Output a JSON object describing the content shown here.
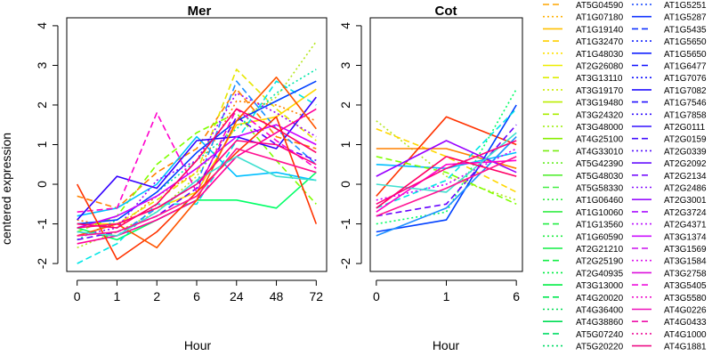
{
  "chart_data": [
    {
      "type": "line",
      "title": "Mer",
      "xlabel": "Hour",
      "ylabel": "centered expression",
      "categories": [
        "0",
        "1",
        "2",
        "6",
        "24",
        "48",
        "72"
      ],
      "ylim": [
        -2.2,
        4.2
      ],
      "yticks": [
        -2,
        -1,
        0,
        1,
        2,
        3,
        4
      ],
      "grid": false,
      "series": [
        {
          "values": [
            -0.3,
            -0.6,
            0.3,
            0.9,
            2.4,
            1.2,
            0.9
          ],
          "color": "#ff8000",
          "dash": "dash"
        },
        {
          "values": [
            -0.9,
            -1.1,
            -0.3,
            0.3,
            2.1,
            2.0,
            1.6
          ],
          "color": "#ff8000",
          "dash": "dot"
        },
        {
          "values": [
            -1.0,
            -1.0,
            -0.6,
            -0.2,
            1.5,
            1.7,
            2.4
          ],
          "color": "#ffd700",
          "dash": "solid"
        },
        {
          "values": [
            -1.3,
            -1.0,
            -0.4,
            0.3,
            2.9,
            1.9,
            1.1
          ],
          "color": "#e6e600",
          "dash": "dash"
        },
        {
          "values": [
            -1.6,
            -1.2,
            -0.7,
            0.2,
            1.6,
            2.2,
            3.6
          ],
          "color": "#b5e61d",
          "dash": "dot"
        },
        {
          "values": [
            -1.2,
            -0.8,
            0.5,
            1.3,
            1.8,
            0.6,
            -0.5
          ],
          "color": "#7fff00",
          "dash": "dash"
        },
        {
          "values": [
            -1.1,
            -1.4,
            -0.9,
            -0.4,
            -0.4,
            -0.6,
            0.3
          ],
          "color": "#00ff66",
          "dash": "solid"
        },
        {
          "values": [
            -1.4,
            -0.9,
            -0.2,
            0.6,
            1.4,
            2.3,
            2.9
          ],
          "color": "#00e6a8",
          "dash": "dot"
        },
        {
          "values": [
            -2.0,
            -1.5,
            -0.5,
            -0.5,
            1.1,
            2.6,
            2.0
          ],
          "color": "#00e6e6",
          "dash": "dash"
        },
        {
          "values": [
            -0.8,
            -0.6,
            0.0,
            1.2,
            0.2,
            0.3,
            0.1
          ],
          "color": "#00bfff",
          "dash": "solid"
        },
        {
          "values": [
            -1.2,
            -1.3,
            -0.6,
            0.0,
            2.6,
            1.4,
            0.5
          ],
          "color": "#1e90ff",
          "dash": "dash"
        },
        {
          "values": [
            -1.0,
            -0.9,
            -0.2,
            0.8,
            1.6,
            2.1,
            2.6
          ],
          "color": "#0040ff",
          "dash": "solid"
        },
        {
          "values": [
            -0.9,
            0.2,
            -0.1,
            1.1,
            1.2,
            0.9,
            2.2
          ],
          "color": "#3300ff",
          "dash": "solid"
        },
        {
          "values": [
            -1.4,
            -1.2,
            -0.8,
            -0.1,
            1.7,
            1.0,
            0.6
          ],
          "color": "#6600ff",
          "dash": "dash"
        },
        {
          "values": [
            -1.3,
            -1.1,
            0.1,
            0.6,
            2.3,
            1.8,
            1.2
          ],
          "color": "#9900ff",
          "dash": "dot"
        },
        {
          "values": [
            -1.1,
            -0.8,
            -0.3,
            0.4,
            1.2,
            1.5,
            1.0
          ],
          "color": "#cc00ff",
          "dash": "solid"
        },
        {
          "values": [
            -0.7,
            -0.6,
            1.8,
            -0.2,
            1.9,
            1.1,
            0.4
          ],
          "color": "#ff00cc",
          "dash": "dash"
        },
        {
          "values": [
            -1.5,
            -1.3,
            -0.9,
            -0.4,
            0.7,
            1.3,
            1.9
          ],
          "color": "#ff0099",
          "dash": "solid"
        },
        {
          "values": [
            0.0,
            -1.9,
            -1.2,
            -0.2,
            0.8,
            1.7,
            -1.0
          ],
          "color": "#ff3300",
          "dash": "solid"
        },
        {
          "values": [
            -1.3,
            -1.0,
            -1.6,
            -0.4,
            1.6,
            2.7,
            1.4
          ],
          "color": "#ff5500",
          "dash": "solid"
        },
        {
          "values": [
            -1.2,
            -1.3,
            -0.7,
            0.1,
            0.7,
            0.2,
            0.1
          ],
          "color": "#40e0d0",
          "dash": "solid"
        },
        {
          "values": [
            -1.0,
            -1.1,
            -0.5,
            0.6,
            1.9,
            1.4,
            0.8
          ],
          "color": "#ff0066",
          "dash": "solid"
        },
        {
          "values": [
            -1.3,
            -1.2,
            -0.8,
            -0.3,
            0.9,
            0.6,
            0.3
          ],
          "color": "#ff1493",
          "dash": "solid"
        },
        {
          "values": [
            -1.1,
            -1.0,
            -0.6,
            0.0,
            1.1,
            1.0,
            0.5
          ],
          "color": "#ff0080",
          "dash": "solid"
        }
      ]
    },
    {
      "type": "line",
      "title": "Cot",
      "xlabel": "Hour",
      "ylabel": "",
      "categories": [
        "0",
        "1",
        "6"
      ],
      "ylim": [
        -2.2,
        4.2
      ],
      "yticks": [
        -2,
        -1,
        0,
        1,
        2,
        3,
        4
      ],
      "grid": false,
      "series": [
        {
          "values": [
            1.6,
            0.2,
            -0.4
          ],
          "color": "#b5e61d",
          "dash": "dot"
        },
        {
          "values": [
            1.4,
            0.7,
            -0.2
          ],
          "color": "#ffd700",
          "dash": "dash"
        },
        {
          "values": [
            0.9,
            0.9,
            0.4
          ],
          "color": "#ff8000",
          "dash": "solid"
        },
        {
          "values": [
            -0.3,
            1.7,
            1.0
          ],
          "color": "#ff3300",
          "dash": "solid"
        },
        {
          "values": [
            -1.2,
            -0.9,
            2.0
          ],
          "color": "#0040ff",
          "dash": "solid"
        },
        {
          "values": [
            -1.0,
            -0.7,
            2.4
          ],
          "color": "#00ff66",
          "dash": "dot"
        },
        {
          "values": [
            -0.6,
            0.1,
            1.9
          ],
          "color": "#00e6e6",
          "dash": "dash"
        },
        {
          "values": [
            -0.8,
            -0.5,
            1.5
          ],
          "color": "#6600ff",
          "dash": "dash"
        },
        {
          "values": [
            0.5,
            0.4,
            0.8
          ],
          "color": "#00bfff",
          "dash": "solid"
        },
        {
          "values": [
            0.2,
            1.1,
            0.3
          ],
          "color": "#9900ff",
          "dash": "solid"
        },
        {
          "values": [
            -0.4,
            0.0,
            0.9
          ],
          "color": "#cc00ff",
          "dash": "dot"
        },
        {
          "values": [
            -1.3,
            -0.6,
            1.2
          ],
          "color": "#1e90ff",
          "dash": "solid"
        },
        {
          "values": [
            0.7,
            0.3,
            -0.5
          ],
          "color": "#7fff00",
          "dash": "dash"
        },
        {
          "values": [
            -0.7,
            0.5,
            0.6
          ],
          "color": "#ff00cc",
          "dash": "solid"
        },
        {
          "values": [
            0.0,
            -0.2,
            1.3
          ],
          "color": "#40e0d0",
          "dash": "solid"
        },
        {
          "values": [
            -0.6,
            0.7,
            0.2
          ],
          "color": "#ff0066",
          "dash": "solid"
        },
        {
          "values": [
            -0.8,
            -0.1,
            0.7
          ],
          "color": "#ff1493",
          "dash": "solid"
        },
        {
          "values": [
            -0.5,
            0.4,
            1.1
          ],
          "color": "#ff0080",
          "dash": "solid"
        }
      ]
    }
  ],
  "legend": {
    "col1": [
      {
        "label": "AT5G04590",
        "color": "#ffa500",
        "dash": "dash"
      },
      {
        "label": "AT1G07180",
        "color": "#ffb000",
        "dash": "dot"
      },
      {
        "label": "AT1G19140",
        "color": "#ffc000",
        "dash": "solid"
      },
      {
        "label": "AT1G32470",
        "color": "#ffd000",
        "dash": "dash"
      },
      {
        "label": "AT1G48030",
        "color": "#ffe000",
        "dash": "dot"
      },
      {
        "label": "AT2G26080",
        "color": "#eeee00",
        "dash": "solid"
      },
      {
        "label": "AT3G13110",
        "color": "#ddee00",
        "dash": "dash"
      },
      {
        "label": "AT3G19170",
        "color": "#ccee00",
        "dash": "dot"
      },
      {
        "label": "AT3G19480",
        "color": "#bbee00",
        "dash": "solid"
      },
      {
        "label": "AT3G24320",
        "color": "#aaee00",
        "dash": "dash"
      },
      {
        "label": "AT3G48000",
        "color": "#99ee00",
        "dash": "dot"
      },
      {
        "label": "AT4G25100",
        "color": "#88ee00",
        "dash": "solid"
      },
      {
        "label": "AT4G33010",
        "color": "#77ee11",
        "dash": "dash"
      },
      {
        "label": "AT5G42390",
        "color": "#66ee22",
        "dash": "dot"
      },
      {
        "label": "AT5G48030",
        "color": "#55ee33",
        "dash": "solid"
      },
      {
        "label": "AT5G58330",
        "color": "#44ee44",
        "dash": "dash"
      },
      {
        "label": "AT1G06460",
        "color": "#33ee44",
        "dash": "dot"
      },
      {
        "label": "AT1G10060",
        "color": "#33ee44",
        "dash": "solid"
      },
      {
        "label": "AT1G13560",
        "color": "#22ee44",
        "dash": "dash"
      },
      {
        "label": "AT1G60590",
        "color": "#22ee44",
        "dash": "dot"
      },
      {
        "label": "AT2G21210",
        "color": "#11ee44",
        "dash": "solid"
      },
      {
        "label": "AT2G25190",
        "color": "#11ee44",
        "dash": "dash"
      },
      {
        "label": "AT2G40935",
        "color": "#00ee44",
        "dash": "dot"
      },
      {
        "label": "AT3G13000",
        "color": "#00ee44",
        "dash": "solid"
      },
      {
        "label": "AT4G20020",
        "color": "#00e650",
        "dash": "dash"
      },
      {
        "label": "AT4G36400",
        "color": "#00dd55",
        "dash": "dot"
      },
      {
        "label": "AT4G38860",
        "color": "#00dd55",
        "dash": "solid"
      },
      {
        "label": "AT5G07240",
        "color": "#00dd66",
        "dash": "dash"
      },
      {
        "label": "AT5G20220",
        "color": "#00dd66",
        "dash": "dot"
      }
    ],
    "col2": [
      {
        "label": "AT1G5251",
        "color": "#1144ff",
        "dash": "dot"
      },
      {
        "label": "AT1G5287",
        "color": "#1133ff",
        "dash": "solid"
      },
      {
        "label": "AT1G5435",
        "color": "#1133ff",
        "dash": "dash"
      },
      {
        "label": "AT1G5650",
        "color": "#1122ff",
        "dash": "dot"
      },
      {
        "label": "AT1G5650",
        "color": "#1122ff",
        "dash": "solid"
      },
      {
        "label": "AT1G6477",
        "color": "#1111ff",
        "dash": "dash"
      },
      {
        "label": "AT1G7076",
        "color": "#1111ff",
        "dash": "dot"
      },
      {
        "label": "AT1G7082",
        "color": "#2211ff",
        "dash": "solid"
      },
      {
        "label": "AT1G7546",
        "color": "#2211ff",
        "dash": "dash"
      },
      {
        "label": "AT1G7858",
        "color": "#3311ff",
        "dash": "dot"
      },
      {
        "label": "AT2G0111",
        "color": "#3311ff",
        "dash": "solid"
      },
      {
        "label": "AT2G0159",
        "color": "#4411ff",
        "dash": "dash"
      },
      {
        "label": "AT2G0339",
        "color": "#5511ff",
        "dash": "dot"
      },
      {
        "label": "AT2G2092",
        "color": "#6611ff",
        "dash": "solid"
      },
      {
        "label": "AT2G2134",
        "color": "#7711ff",
        "dash": "dash"
      },
      {
        "label": "AT2G2486",
        "color": "#8811ff",
        "dash": "dot"
      },
      {
        "label": "AT2G3001",
        "color": "#9911ff",
        "dash": "solid"
      },
      {
        "label": "AT2G3724",
        "color": "#aa11ff",
        "dash": "dash"
      },
      {
        "label": "AT2G4371",
        "color": "#bb11ff",
        "dash": "dot"
      },
      {
        "label": "AT3G1374",
        "color": "#cc11ff",
        "dash": "solid"
      },
      {
        "label": "AT3G1569",
        "color": "#cc11ee",
        "dash": "dash"
      },
      {
        "label": "AT3G1584",
        "color": "#dd11ee",
        "dash": "dot"
      },
      {
        "label": "AT3G2758",
        "color": "#dd11dd",
        "dash": "solid"
      },
      {
        "label": "AT3G5405",
        "color": "#ee11dd",
        "dash": "dash"
      },
      {
        "label": "AT3G5580",
        "color": "#ee11cc",
        "dash": "dot"
      },
      {
        "label": "AT4G0226",
        "color": "#ee11bb",
        "dash": "solid"
      },
      {
        "label": "AT4G0433",
        "color": "#ee11aa",
        "dash": "dash"
      },
      {
        "label": "AT4G1000",
        "color": "#ee1199",
        "dash": "dot"
      },
      {
        "label": "AT4G1881",
        "color": "#ee1188",
        "dash": "solid"
      }
    ]
  }
}
